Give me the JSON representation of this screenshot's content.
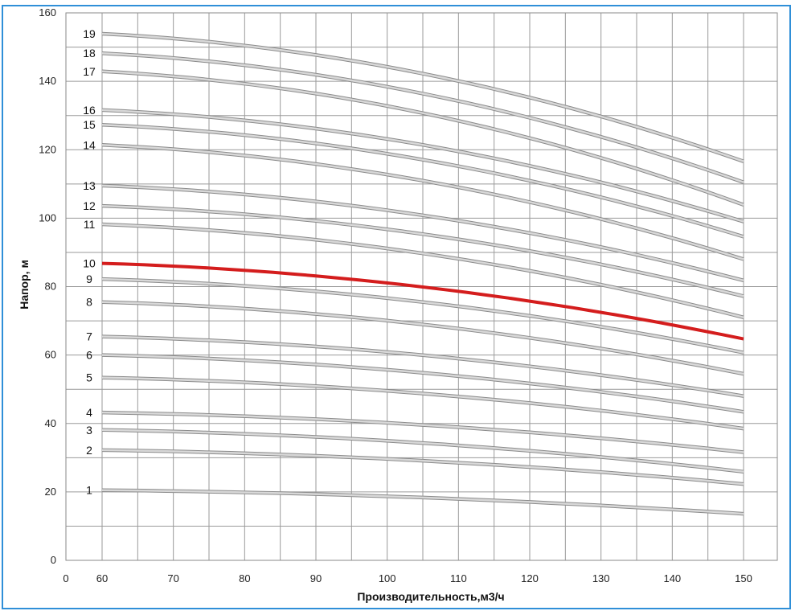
{
  "colors": {
    "frame_border": "#2f8fd8",
    "grid": "#9a9a9a",
    "curve": "#d8d8d8",
    "curve_outline": "#8c8c8c",
    "highlight": "#d41d1d",
    "text": "#111111"
  },
  "chart_data": {
    "type": "line",
    "title": "",
    "xlabel": "Производительность,м3/ч",
    "ylabel": "Напор, м",
    "xlim": [
      0,
      150
    ],
    "ylim": [
      0,
      160
    ],
    "grid": true,
    "legend": "none",
    "x_tick_labels": [
      "0",
      "60",
      "70",
      "80",
      "90",
      "100",
      "110",
      "120",
      "130",
      "140",
      "150"
    ],
    "x_tick_values": [
      0,
      60,
      70,
      80,
      90,
      100,
      110,
      120,
      130,
      140,
      150
    ],
    "y_tick_labels": [
      "0",
      "20",
      "40",
      "60",
      "80",
      "100",
      "120",
      "140",
      "160"
    ],
    "y_tick_values": [
      0,
      20,
      40,
      60,
      80,
      100,
      120,
      140,
      160
    ],
    "x_grid_values": [
      0,
      60,
      65,
      70,
      75,
      80,
      85,
      90,
      95,
      100,
      105,
      110,
      115,
      120,
      125,
      130,
      135,
      140,
      145,
      150
    ],
    "y_grid_values": [
      0,
      10,
      20,
      30,
      40,
      50,
      60,
      70,
      80,
      90,
      100,
      110,
      120,
      130,
      140,
      150,
      160
    ],
    "x": [
      60,
      150
    ],
    "highlighted_series": "10",
    "series": [
      {
        "name": "1",
        "start": 20.5,
        "end": 13.6
      },
      {
        "name": "2",
        "start": 32.2,
        "end": 22.3
      },
      {
        "name": "3",
        "start": 38.1,
        "end": 25.9
      },
      {
        "name": "4",
        "start": 43.2,
        "end": 31.6
      },
      {
        "name": "5",
        "start": 53.4,
        "end": 38.5
      },
      {
        "name": "6",
        "start": 60.0,
        "end": 43.4
      },
      {
        "name": "7",
        "start": 65.4,
        "end": 48.0
      },
      {
        "name": "8",
        "start": 75.5,
        "end": 54.5
      },
      {
        "name": "9",
        "start": 82.2,
        "end": 60.7
      },
      {
        "name": "10",
        "start": 86.8,
        "end": 64.7
      },
      {
        "name": "11",
        "start": 98.2,
        "end": 71.0
      },
      {
        "name": "12",
        "start": 103.6,
        "end": 77.2
      },
      {
        "name": "13",
        "start": 109.5,
        "end": 81.8
      },
      {
        "name": "14",
        "start": 121.4,
        "end": 88.0
      },
      {
        "name": "15",
        "start": 127.3,
        "end": 94.6
      },
      {
        "name": "16",
        "start": 131.6,
        "end": 99.0
      },
      {
        "name": "17",
        "start": 142.9,
        "end": 103.9
      },
      {
        "name": "18",
        "start": 148.2,
        "end": 110.5
      },
      {
        "name": "19",
        "start": 153.9,
        "end": 116.6
      }
    ]
  }
}
